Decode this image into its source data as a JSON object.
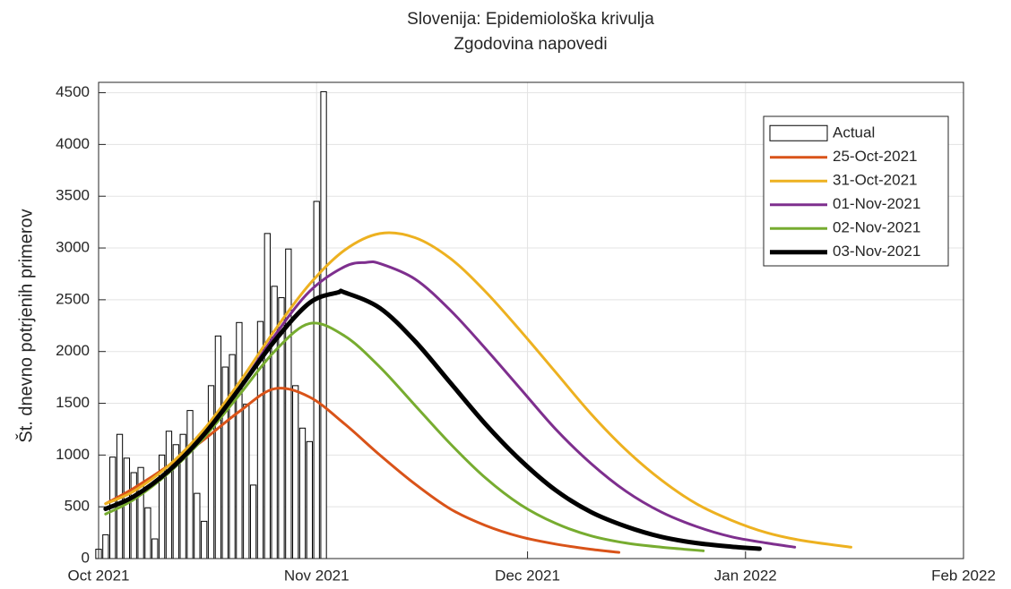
{
  "chart_data": {
    "type": "line",
    "title": "Slovenija: Epidemiološka krivulja",
    "subtitle": "Zgodovina napovedi",
    "ylabel": "Št. dnevno potrjenih primerov",
    "xlim": [
      0,
      123
    ],
    "xticks": [
      {
        "value": 0,
        "label": "Oct 2021"
      },
      {
        "value": 31,
        "label": "Nov 2021"
      },
      {
        "value": 61,
        "label": "Dec 2021"
      },
      {
        "value": 92,
        "label": "Jan 2022"
      },
      {
        "value": 123,
        "label": "Feb 2022"
      }
    ],
    "ylim": [
      0,
      4600
    ],
    "yticks": [
      0,
      500,
      1000,
      1500,
      2000,
      2500,
      3000,
      3500,
      4000,
      4500
    ],
    "grid": true,
    "legend": "northeast",
    "series": [
      {
        "name": "Actual",
        "type": "bar",
        "color": "#ffffff",
        "x": [
          0,
          1,
          2,
          3,
          4,
          5,
          6,
          7,
          8,
          9,
          10,
          11,
          12,
          13,
          14,
          15,
          16,
          17,
          18,
          19,
          20,
          21,
          22,
          23,
          24,
          25,
          26,
          27,
          28,
          29,
          30,
          31,
          32
        ],
        "values": [
          90,
          230,
          980,
          1200,
          970,
          830,
          880,
          490,
          190,
          1000,
          1230,
          1100,
          1200,
          1430,
          630,
          360,
          1670,
          2150,
          1850,
          1970,
          2280,
          1490,
          710,
          2290,
          3140,
          2630,
          2520,
          2990,
          1670,
          1260,
          1130,
          3450,
          4510
        ]
      },
      {
        "name": "25-Oct-2021",
        "type": "line",
        "color": "#d95319",
        "line_width": 3,
        "x": [
          1,
          5,
          10,
          15,
          20,
          25,
          30,
          35,
          40,
          45,
          50,
          55,
          60,
          65,
          70,
          74
        ],
        "values": [
          530,
          680,
          900,
          1150,
          1420,
          1640,
          1560,
          1300,
          1000,
          720,
          480,
          320,
          210,
          140,
          90,
          60
        ]
      },
      {
        "name": "31-Oct-2021",
        "type": "line",
        "color": "#edb120",
        "line_width": 3,
        "x": [
          1,
          5,
          10,
          15,
          20,
          25,
          30,
          35,
          40,
          45,
          50,
          55,
          60,
          65,
          70,
          75,
          80,
          85,
          90,
          95,
          100,
          107
        ],
        "values": [
          530,
          650,
          900,
          1250,
          1700,
          2200,
          2650,
          2980,
          3140,
          3100,
          2900,
          2580,
          2200,
          1800,
          1400,
          1050,
          760,
          530,
          370,
          250,
          175,
          110
        ]
      },
      {
        "name": "01-Nov-2021",
        "type": "line",
        "color": "#7e2f8e",
        "line_width": 3,
        "x": [
          1,
          5,
          10,
          15,
          20,
          25,
          30,
          35,
          38,
          40,
          45,
          50,
          55,
          60,
          65,
          70,
          75,
          80,
          85,
          90,
          95,
          99
        ],
        "values": [
          480,
          600,
          850,
          1200,
          1650,
          2150,
          2580,
          2820,
          2860,
          2850,
          2700,
          2400,
          2030,
          1640,
          1250,
          920,
          650,
          450,
          310,
          210,
          150,
          110
        ]
      },
      {
        "name": "02-Nov-2021",
        "type": "line",
        "color": "#77ac30",
        "line_width": 3,
        "x": [
          1,
          5,
          10,
          15,
          20,
          25,
          30,
          35,
          40,
          45,
          50,
          55,
          60,
          65,
          70,
          75,
          80,
          86
        ],
        "values": [
          430,
          570,
          830,
          1170,
          1580,
          2000,
          2270,
          2150,
          1850,
          1480,
          1110,
          780,
          520,
          340,
          220,
          150,
          110,
          75
        ]
      },
      {
        "name": "03-Nov-2021",
        "type": "line",
        "color": "#000000",
        "line_width": 5,
        "x": [
          1,
          5,
          10,
          15,
          20,
          25,
          30,
          34,
          35,
          40,
          45,
          50,
          55,
          60,
          65,
          70,
          75,
          80,
          85,
          90,
          94
        ],
        "values": [
          480,
          600,
          850,
          1200,
          1640,
          2100,
          2470,
          2570,
          2570,
          2420,
          2100,
          1700,
          1300,
          950,
          660,
          450,
          310,
          210,
          150,
          115,
          95
        ]
      }
    ]
  }
}
